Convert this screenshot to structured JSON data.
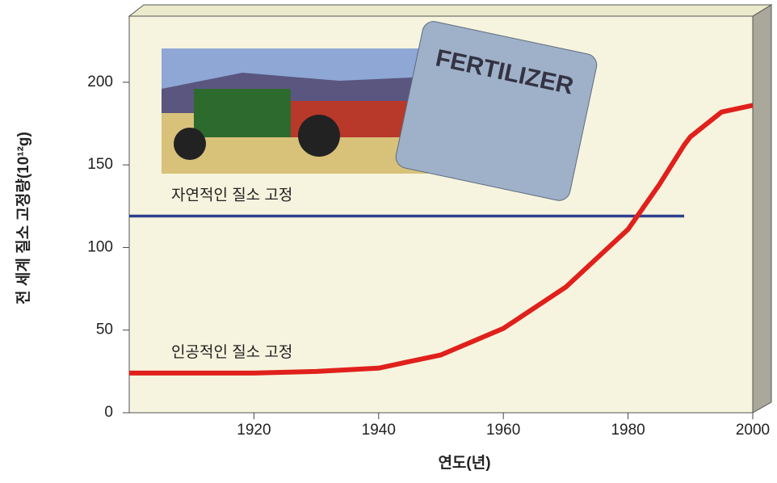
{
  "chart_data": {
    "type": "line",
    "x_label": "연도(년)",
    "y_label": "전 세계 질소 고정량(10¹²g)",
    "x": [
      1900,
      1910,
      1920,
      1930,
      1940,
      1950,
      1960,
      1970,
      1980,
      1985,
      1989,
      1990,
      1995,
      2000
    ],
    "series": [
      {
        "name": "자연적인 질소 고정",
        "color": "#2e3f8f",
        "values": [
          119,
          119,
          119,
          119,
          119,
          119,
          119,
          119,
          119,
          119,
          119,
          null,
          null,
          null
        ]
      },
      {
        "name": "인공적인 질소 고정",
        "color": "#e0201c",
        "values": [
          24,
          24,
          24,
          25,
          27,
          35,
          51,
          76,
          111,
          138,
          162,
          167,
          182,
          186
        ]
      }
    ],
    "xlim": [
      1900,
      2000
    ],
    "xticks": [
      1920,
      1940,
      1960,
      1980,
      2000
    ],
    "ylim": [
      0,
      240
    ],
    "yticks": [
      0,
      50,
      100,
      150,
      200
    ],
    "image_text": "FERTILIZER"
  }
}
